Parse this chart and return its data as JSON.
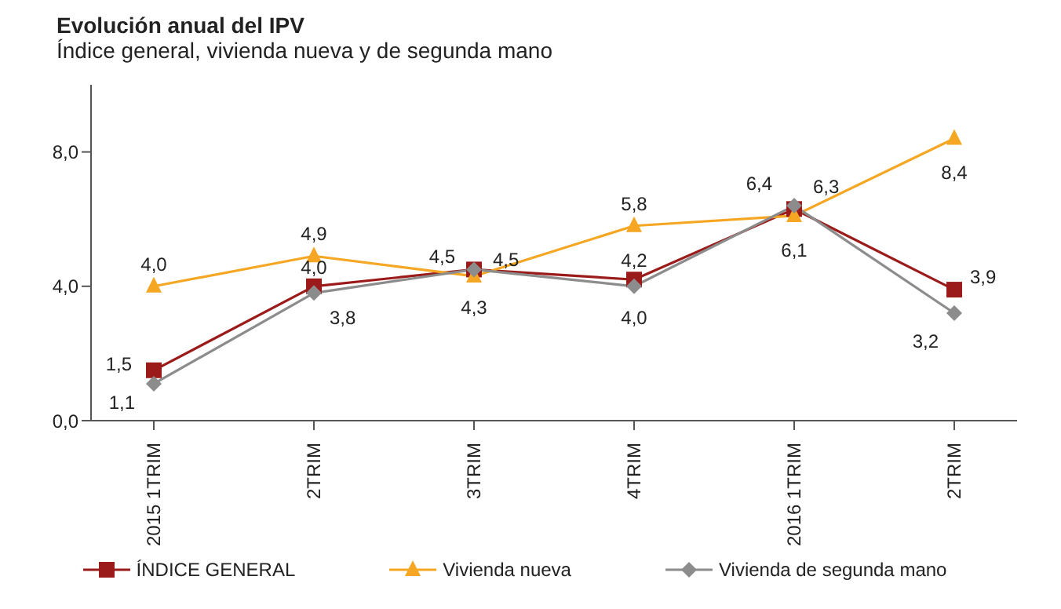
{
  "chart_data": {
    "type": "line",
    "title": "Evolución anual del IPV",
    "subtitle": "Índice general, vivienda nueva y de segunda mano",
    "categories": [
      "2015 1TRIM",
      "2TRIM",
      "3TRIM",
      "4TRIM",
      "2016 1TRIM",
      "2TRIM"
    ],
    "series": [
      {
        "name": "ÍNDICE GENERAL",
        "color": "#9b1b1b",
        "marker": "square",
        "values": [
          1.5,
          4.0,
          4.5,
          4.2,
          6.3,
          3.9
        ],
        "value_labels": [
          "1,5",
          "4,0",
          "4,5",
          "4,2",
          "6,3",
          "3,9"
        ]
      },
      {
        "name": "Vivienda nueva",
        "color": "#f5a623",
        "marker": "triangle",
        "values": [
          4.0,
          4.9,
          4.3,
          5.8,
          6.1,
          8.4
        ],
        "value_labels": [
          "4,0",
          "4,9",
          "4,3",
          "5,8",
          "6,1",
          "8,4"
        ]
      },
      {
        "name": "Vivienda de segunda mano",
        "color": "#8c8c8c",
        "marker": "diamond",
        "values": [
          1.1,
          3.8,
          4.5,
          4.0,
          6.4,
          3.2
        ],
        "value_labels": [
          "1,1",
          "3,8",
          "4,5",
          "4,0",
          "6,4",
          "3,2"
        ]
      }
    ],
    "ylim": [
      0,
      10
    ],
    "yticks": [
      {
        "value": 0,
        "label": "0,0"
      },
      {
        "value": 4,
        "label": "4,0"
      },
      {
        "value": 8,
        "label": "8,0"
      }
    ],
    "legend": "bottom",
    "line_style": "solid"
  }
}
